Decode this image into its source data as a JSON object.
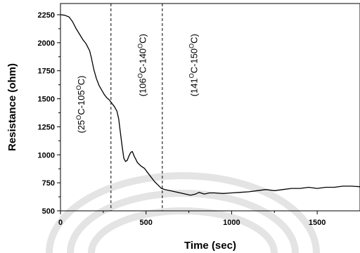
{
  "chart_data": {
    "type": "line",
    "title": "",
    "xlabel": "Time (sec)",
    "ylabel": "Resistance (ohm)",
    "xlim": [
      0,
      1750
    ],
    "ylim": [
      500,
      2350
    ],
    "xticks": [
      0,
      500,
      1000,
      1500
    ],
    "xtick_labels": [
      "0",
      "500",
      "1000",
      "1500"
    ],
    "yticks": [
      500,
      750,
      1000,
      1250,
      1500,
      1750,
      2000,
      2250
    ],
    "ytick_labels": [
      "500",
      "750",
      "1000",
      "1250",
      "1500",
      "1750",
      "2000",
      "2250"
    ],
    "grid": false,
    "legend": "none",
    "line_color": "#000000",
    "dividers": [
      {
        "x": 295,
        "style": "dashed"
      },
      {
        "x": 595,
        "style": "dashed"
      }
    ],
    "regions": [
      {
        "base": "(25",
        "sup1": "O",
        "mid": "C-105",
        "sup2": "O",
        "end": "C)",
        "x": 140,
        "y": 1450
      },
      {
        "base": "(106",
        "sup1": "O",
        "mid": "C-140",
        "sup2": "O",
        "end": "C)",
        "x": 500,
        "y": 1800
      },
      {
        "base": "(141",
        "sup1": "O",
        "mid": "C-150",
        "sup2": "O",
        "end": "C)",
        "x": 800,
        "y": 1800
      }
    ],
    "series": [
      {
        "x": [
          0,
          25,
          50,
          70,
          90,
          110,
          130,
          150,
          160,
          170,
          180,
          195,
          210,
          225,
          240,
          255,
          270,
          285,
          300,
          315,
          330,
          340,
          350,
          360,
          370,
          380,
          390,
          400,
          410,
          420,
          430,
          440,
          450,
          470,
          490,
          510,
          530,
          550,
          570,
          590,
          610,
          640,
          670,
          700,
          730,
          760,
          790,
          810,
          840,
          870,
          900,
          950,
          1000,
          1050,
          1100,
          1150,
          1200,
          1250,
          1300,
          1350,
          1400,
          1450,
          1500,
          1550,
          1600,
          1650,
          1700,
          1750
        ],
        "values": [
          2250,
          2245,
          2230,
          2190,
          2130,
          2080,
          2030,
          1990,
          1960,
          1930,
          1870,
          1760,
          1680,
          1620,
          1580,
          1540,
          1510,
          1490,
          1460,
          1430,
          1390,
          1320,
          1200,
          1080,
          970,
          940,
          950,
          990,
          1020,
          1030,
          990,
          960,
          930,
          900,
          880,
          840,
          800,
          760,
          730,
          700,
          690,
          680,
          670,
          660,
          650,
          640,
          650,
          665,
          650,
          660,
          660,
          655,
          660,
          665,
          670,
          680,
          690,
          680,
          690,
          700,
          700,
          710,
          700,
          710,
          710,
          720,
          720,
          715
        ]
      }
    ]
  }
}
